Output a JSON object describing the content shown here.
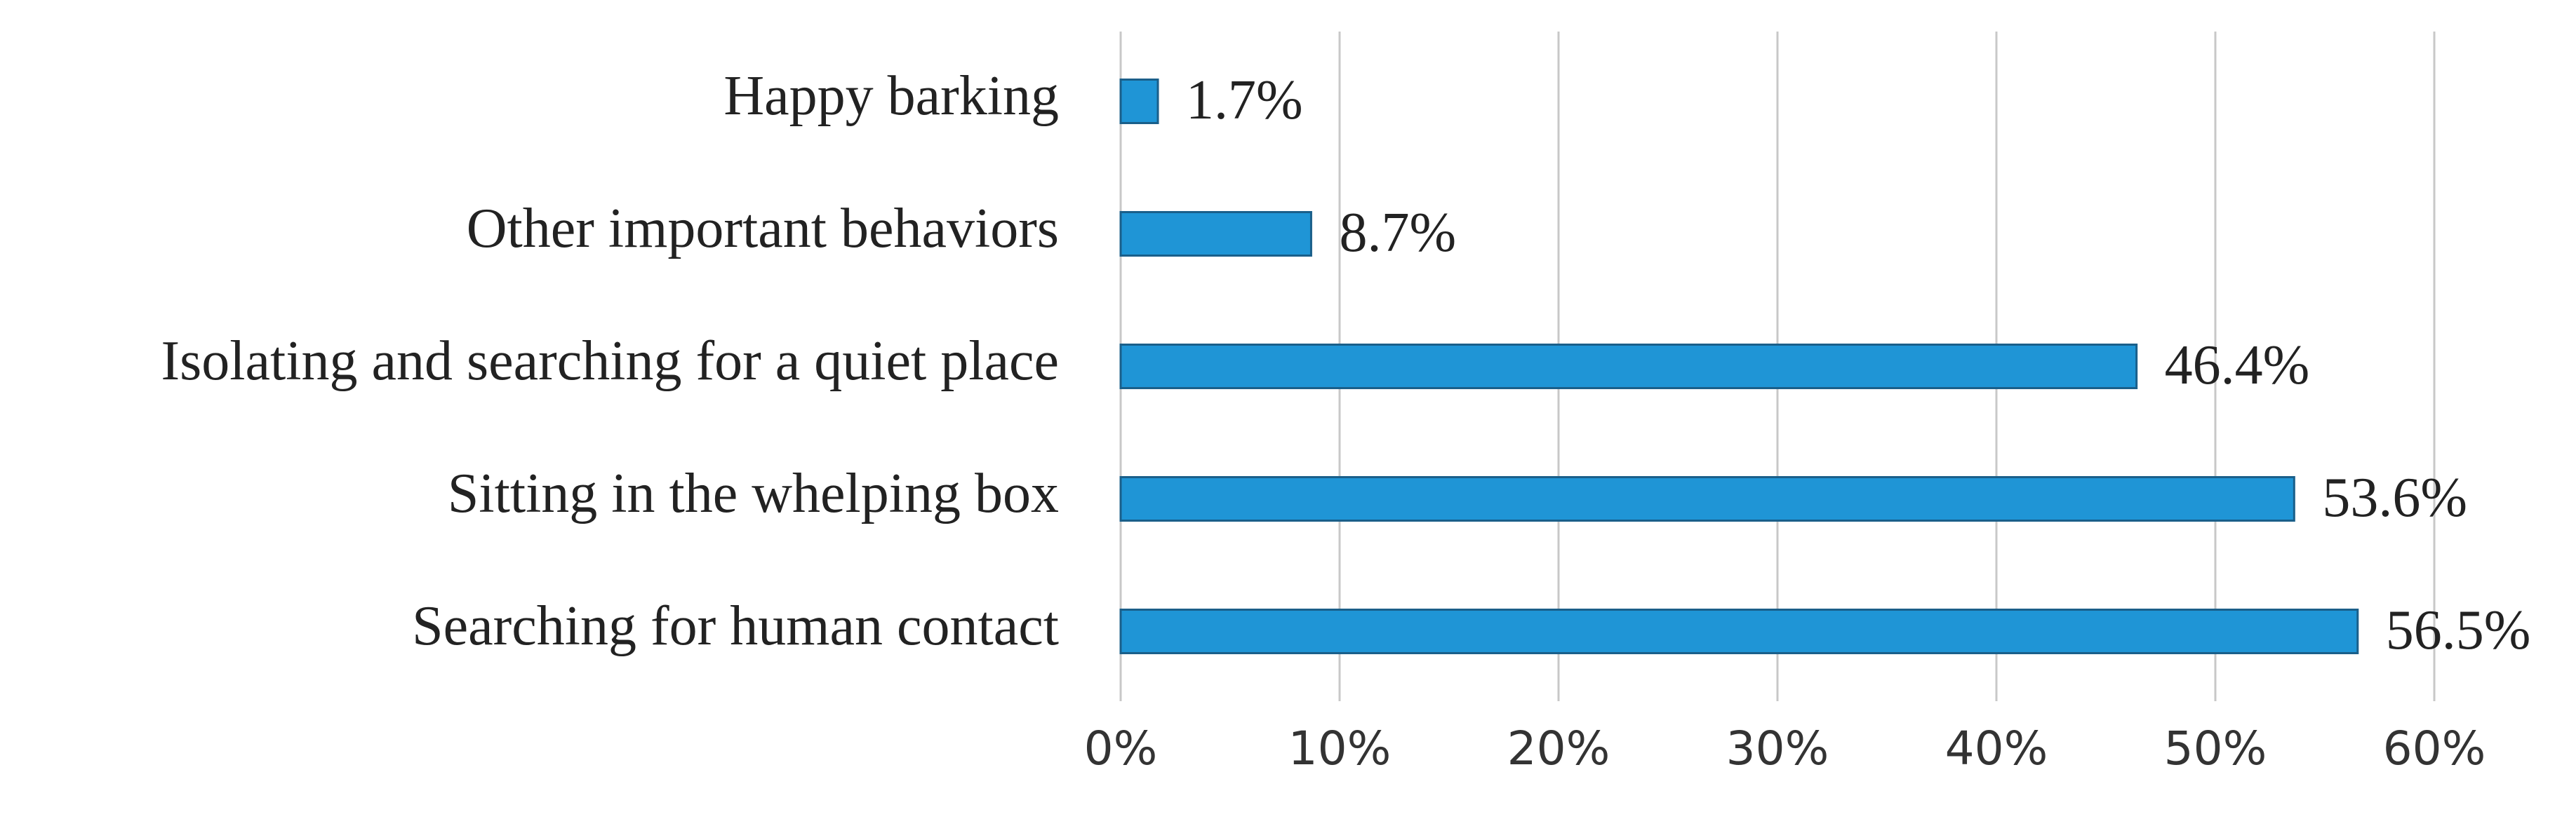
{
  "chart_data": {
    "type": "bar",
    "orientation": "horizontal",
    "categories": [
      "Happy barking",
      "Other important behaviors",
      "Isolating and searching for a quiet place",
      "Sitting in the whelping box",
      "Searching for human contact"
    ],
    "values": [
      1.7,
      8.7,
      46.4,
      53.6,
      56.5
    ],
    "value_labels": [
      "1.7%",
      "8.7%",
      "46.4%",
      "53.6%",
      "56.5%"
    ],
    "color": "#1f95d6",
    "xlim": [
      0,
      60
    ],
    "xticks": [
      {
        "value": 0,
        "label": "0%"
      },
      {
        "value": 10,
        "label": "10%"
      },
      {
        "value": 20,
        "label": "20%"
      },
      {
        "value": 30,
        "label": "30%"
      },
      {
        "value": 40,
        "label": "40%"
      },
      {
        "value": 50,
        "label": "50%"
      },
      {
        "value": 60,
        "label": "60%"
      }
    ],
    "grid": true
  }
}
